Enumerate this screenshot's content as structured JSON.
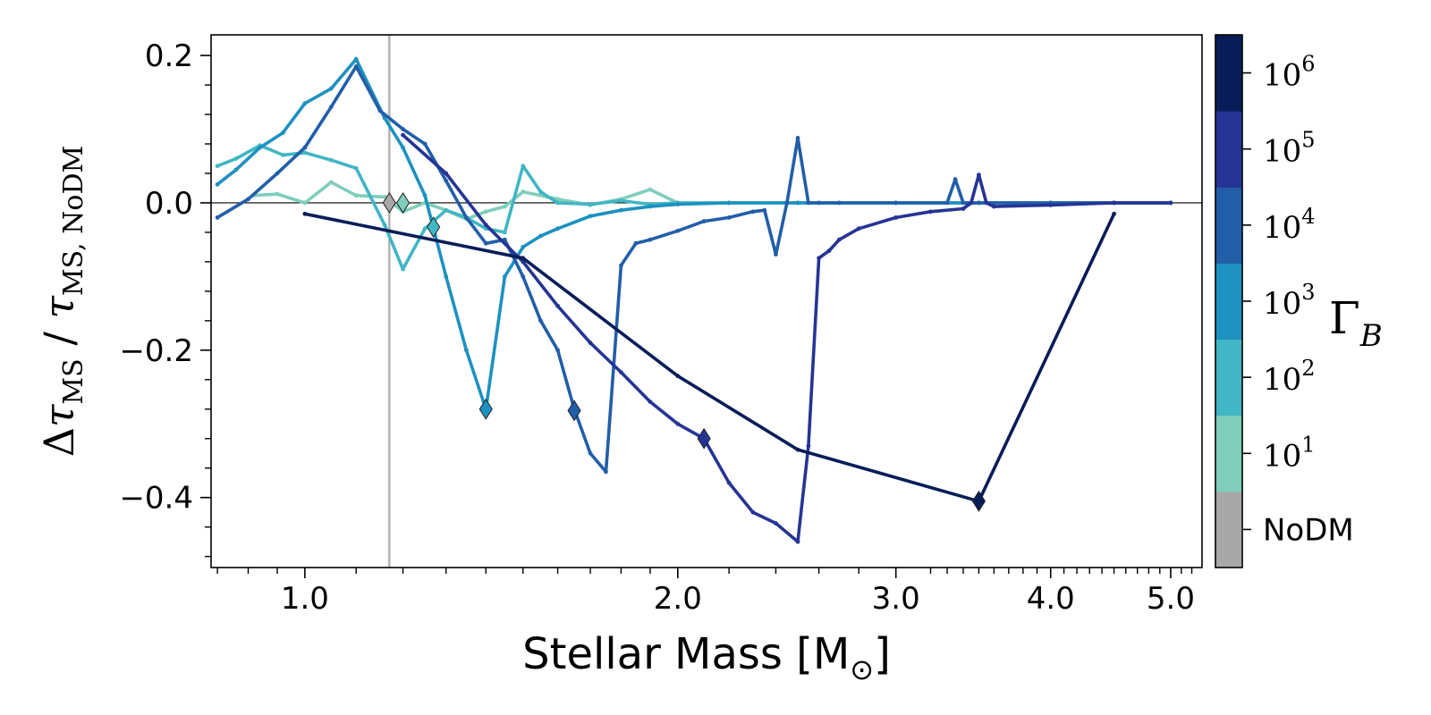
{
  "chart_data": {
    "type": "line",
    "xlabel": "Stellar Mass [M☉]",
    "xlabel_parts": {
      "main": "Stellar Mass [M",
      "sub": "⊙",
      "end": "]"
    },
    "ylabel": "Δτ_MS / τ_MS, NoDM",
    "ylabel_parts": {
      "delta": "Δ",
      "tau1": "τ",
      "sub1": "MS",
      "slash": " / ",
      "tau2": "τ",
      "sub2": "MS, NoDM"
    },
    "x_scale": "log",
    "xlim": [
      0.84,
      5.3
    ],
    "ylim": [
      -0.495,
      0.228
    ],
    "xticks": [
      {
        "value": 1.0,
        "label": "1.0"
      },
      {
        "value": 2.0,
        "label": "2.0"
      },
      {
        "value": 3.0,
        "label": "3.0"
      },
      {
        "value": 4.0,
        "label": "4.0"
      },
      {
        "value": 5.0,
        "label": "5.0"
      }
    ],
    "yticks": [
      {
        "value": 0.2,
        "label": "0.2"
      },
      {
        "value": 0.0,
        "label": "0.0"
      },
      {
        "value": -0.2,
        "label": "−0.2"
      },
      {
        "value": -0.4,
        "label": "−0.4"
      }
    ],
    "reference_lines": {
      "horizontal_y": 0.0,
      "vertical_x": 1.17
    },
    "grid": false,
    "colorbar": {
      "label": "Γ_B",
      "label_parts": {
        "main": "Γ",
        "sub": "B"
      },
      "colors": [
        "#a8a8a8",
        "#7fcebb",
        "#41b6c4",
        "#1d91c0",
        "#225ea8",
        "#253494",
        "#081d58"
      ],
      "labels": [
        {
          "base": "NoDM",
          "exp": ""
        },
        {
          "base": "10",
          "exp": "1"
        },
        {
          "base": "10",
          "exp": "2"
        },
        {
          "base": "10",
          "exp": "3"
        },
        {
          "base": "10",
          "exp": "4"
        },
        {
          "base": "10",
          "exp": "5"
        },
        {
          "base": "10",
          "exp": "6"
        }
      ]
    },
    "series": [
      {
        "color": "#7fcebb",
        "x": [
          0.91,
          0.95,
          1.0,
          1.05,
          1.1,
          1.16,
          1.2,
          1.25,
          1.3,
          1.35,
          1.4,
          1.45,
          1.5,
          1.6,
          1.7,
          1.8,
          1.9,
          2.0,
          2.2,
          2.5,
          3.0,
          3.5,
          4.0,
          4.5,
          5.0
        ],
        "y": [
          0.01,
          0.012,
          0.0,
          0.028,
          0.01,
          0.008,
          -0.012,
          0.0,
          -0.01,
          -0.022,
          -0.012,
          -0.005,
          0.015,
          0.005,
          -0.003,
          0.005,
          0.018,
          0.0,
          0.0,
          0.0,
          0.0,
          0.0,
          0.0,
          0.0,
          0.0
        ],
        "marker": {
          "x": 1.2,
          "y": 0.0
        }
      },
      {
        "color": "#41b6c4",
        "x": [
          0.85,
          0.88,
          0.92,
          0.96,
          1.0,
          1.05,
          1.1,
          1.16,
          1.2,
          1.25,
          1.3,
          1.35,
          1.4,
          1.45,
          1.5,
          1.55,
          1.6,
          1.7,
          1.8,
          1.9,
          2.0,
          2.2,
          2.5,
          3.0,
          3.5,
          4.0,
          4.5,
          5.0
        ],
        "y": [
          0.05,
          0.06,
          0.078,
          0.065,
          0.068,
          0.058,
          0.047,
          -0.03,
          -0.09,
          -0.035,
          -0.01,
          -0.02,
          -0.035,
          -0.04,
          0.05,
          0.015,
          0.0,
          -0.002,
          0.003,
          -0.002,
          0.0,
          0.0,
          0.0,
          0.0,
          0.0,
          0.0,
          0.0,
          0.0
        ],
        "marker": {
          "x": 1.27,
          "y": -0.033
        }
      },
      {
        "color": "#1d91c0",
        "x": [
          0.85,
          0.88,
          0.92,
          0.96,
          1.0,
          1.05,
          1.1,
          1.16,
          1.2,
          1.25,
          1.3,
          1.35,
          1.4,
          1.45,
          1.5,
          1.55,
          1.6,
          1.7,
          1.8,
          1.9,
          2.0,
          2.2,
          2.5,
          3.0,
          3.5,
          4.0,
          4.5,
          5.0
        ],
        "y": [
          0.025,
          0.045,
          0.075,
          0.095,
          0.135,
          0.155,
          0.195,
          0.115,
          0.075,
          0.01,
          -0.1,
          -0.2,
          -0.28,
          -0.1,
          -0.06,
          -0.045,
          -0.035,
          -0.018,
          -0.01,
          -0.005,
          -0.002,
          0.0,
          0.0,
          0.0,
          0.0,
          0.0,
          0.0,
          0.0
        ],
        "marker": {
          "x": 1.4,
          "y": -0.28
        }
      },
      {
        "color": "#225ea8",
        "x": [
          0.85,
          0.9,
          0.95,
          1.0,
          1.05,
          1.1,
          1.15,
          1.2,
          1.25,
          1.3,
          1.35,
          1.4,
          1.45,
          1.5,
          1.55,
          1.6,
          1.65,
          1.7,
          1.75,
          1.8,
          1.85,
          1.9,
          2.0,
          2.1,
          2.2,
          2.3,
          2.35,
          2.4,
          2.45,
          2.5,
          2.55,
          2.6,
          2.7,
          3.0,
          3.3,
          3.35,
          3.4,
          3.45,
          3.5,
          4.0,
          4.5,
          5.0
        ],
        "y": [
          -0.02,
          0.005,
          0.04,
          0.075,
          0.13,
          0.185,
          0.125,
          0.1,
          0.08,
          0.03,
          -0.02,
          -0.055,
          -0.05,
          -0.1,
          -0.16,
          -0.2,
          -0.28,
          -0.34,
          -0.365,
          -0.085,
          -0.055,
          -0.05,
          -0.038,
          -0.025,
          -0.02,
          -0.012,
          -0.01,
          -0.07,
          0.0,
          0.088,
          0.0,
          0.0,
          0.0,
          0.0,
          0.0,
          0.032,
          0.0,
          0.0,
          0.0,
          0.0,
          0.0,
          0.0
        ],
        "marker": {
          "x": 1.65,
          "y": -0.282
        }
      },
      {
        "color": "#253494",
        "x": [
          1.2,
          1.3,
          1.4,
          1.5,
          1.6,
          1.7,
          1.8,
          1.9,
          2.0,
          2.1,
          2.2,
          2.3,
          2.4,
          2.5,
          2.55,
          2.6,
          2.65,
          2.7,
          2.8,
          3.0,
          3.2,
          3.4,
          3.45,
          3.5,
          3.55,
          3.6,
          4.0,
          4.5,
          5.0
        ],
        "y": [
          0.092,
          0.04,
          -0.03,
          -0.08,
          -0.14,
          -0.19,
          -0.23,
          -0.27,
          -0.3,
          -0.32,
          -0.38,
          -0.42,
          -0.435,
          -0.46,
          -0.33,
          -0.075,
          -0.065,
          -0.05,
          -0.035,
          -0.02,
          -0.012,
          -0.008,
          0.0,
          0.038,
          0.0,
          -0.005,
          -0.003,
          0.0,
          0.0
        ],
        "marker": {
          "x": 2.1,
          "y": -0.32
        }
      },
      {
        "color": "#081d58",
        "x": [
          1.0,
          1.5,
          2.0,
          2.5,
          3.5,
          4.5
        ],
        "y": [
          -0.015,
          -0.075,
          -0.235,
          -0.335,
          -0.405,
          -0.015
        ],
        "marker": {
          "x": 3.5,
          "y": -0.405
        }
      }
    ]
  }
}
